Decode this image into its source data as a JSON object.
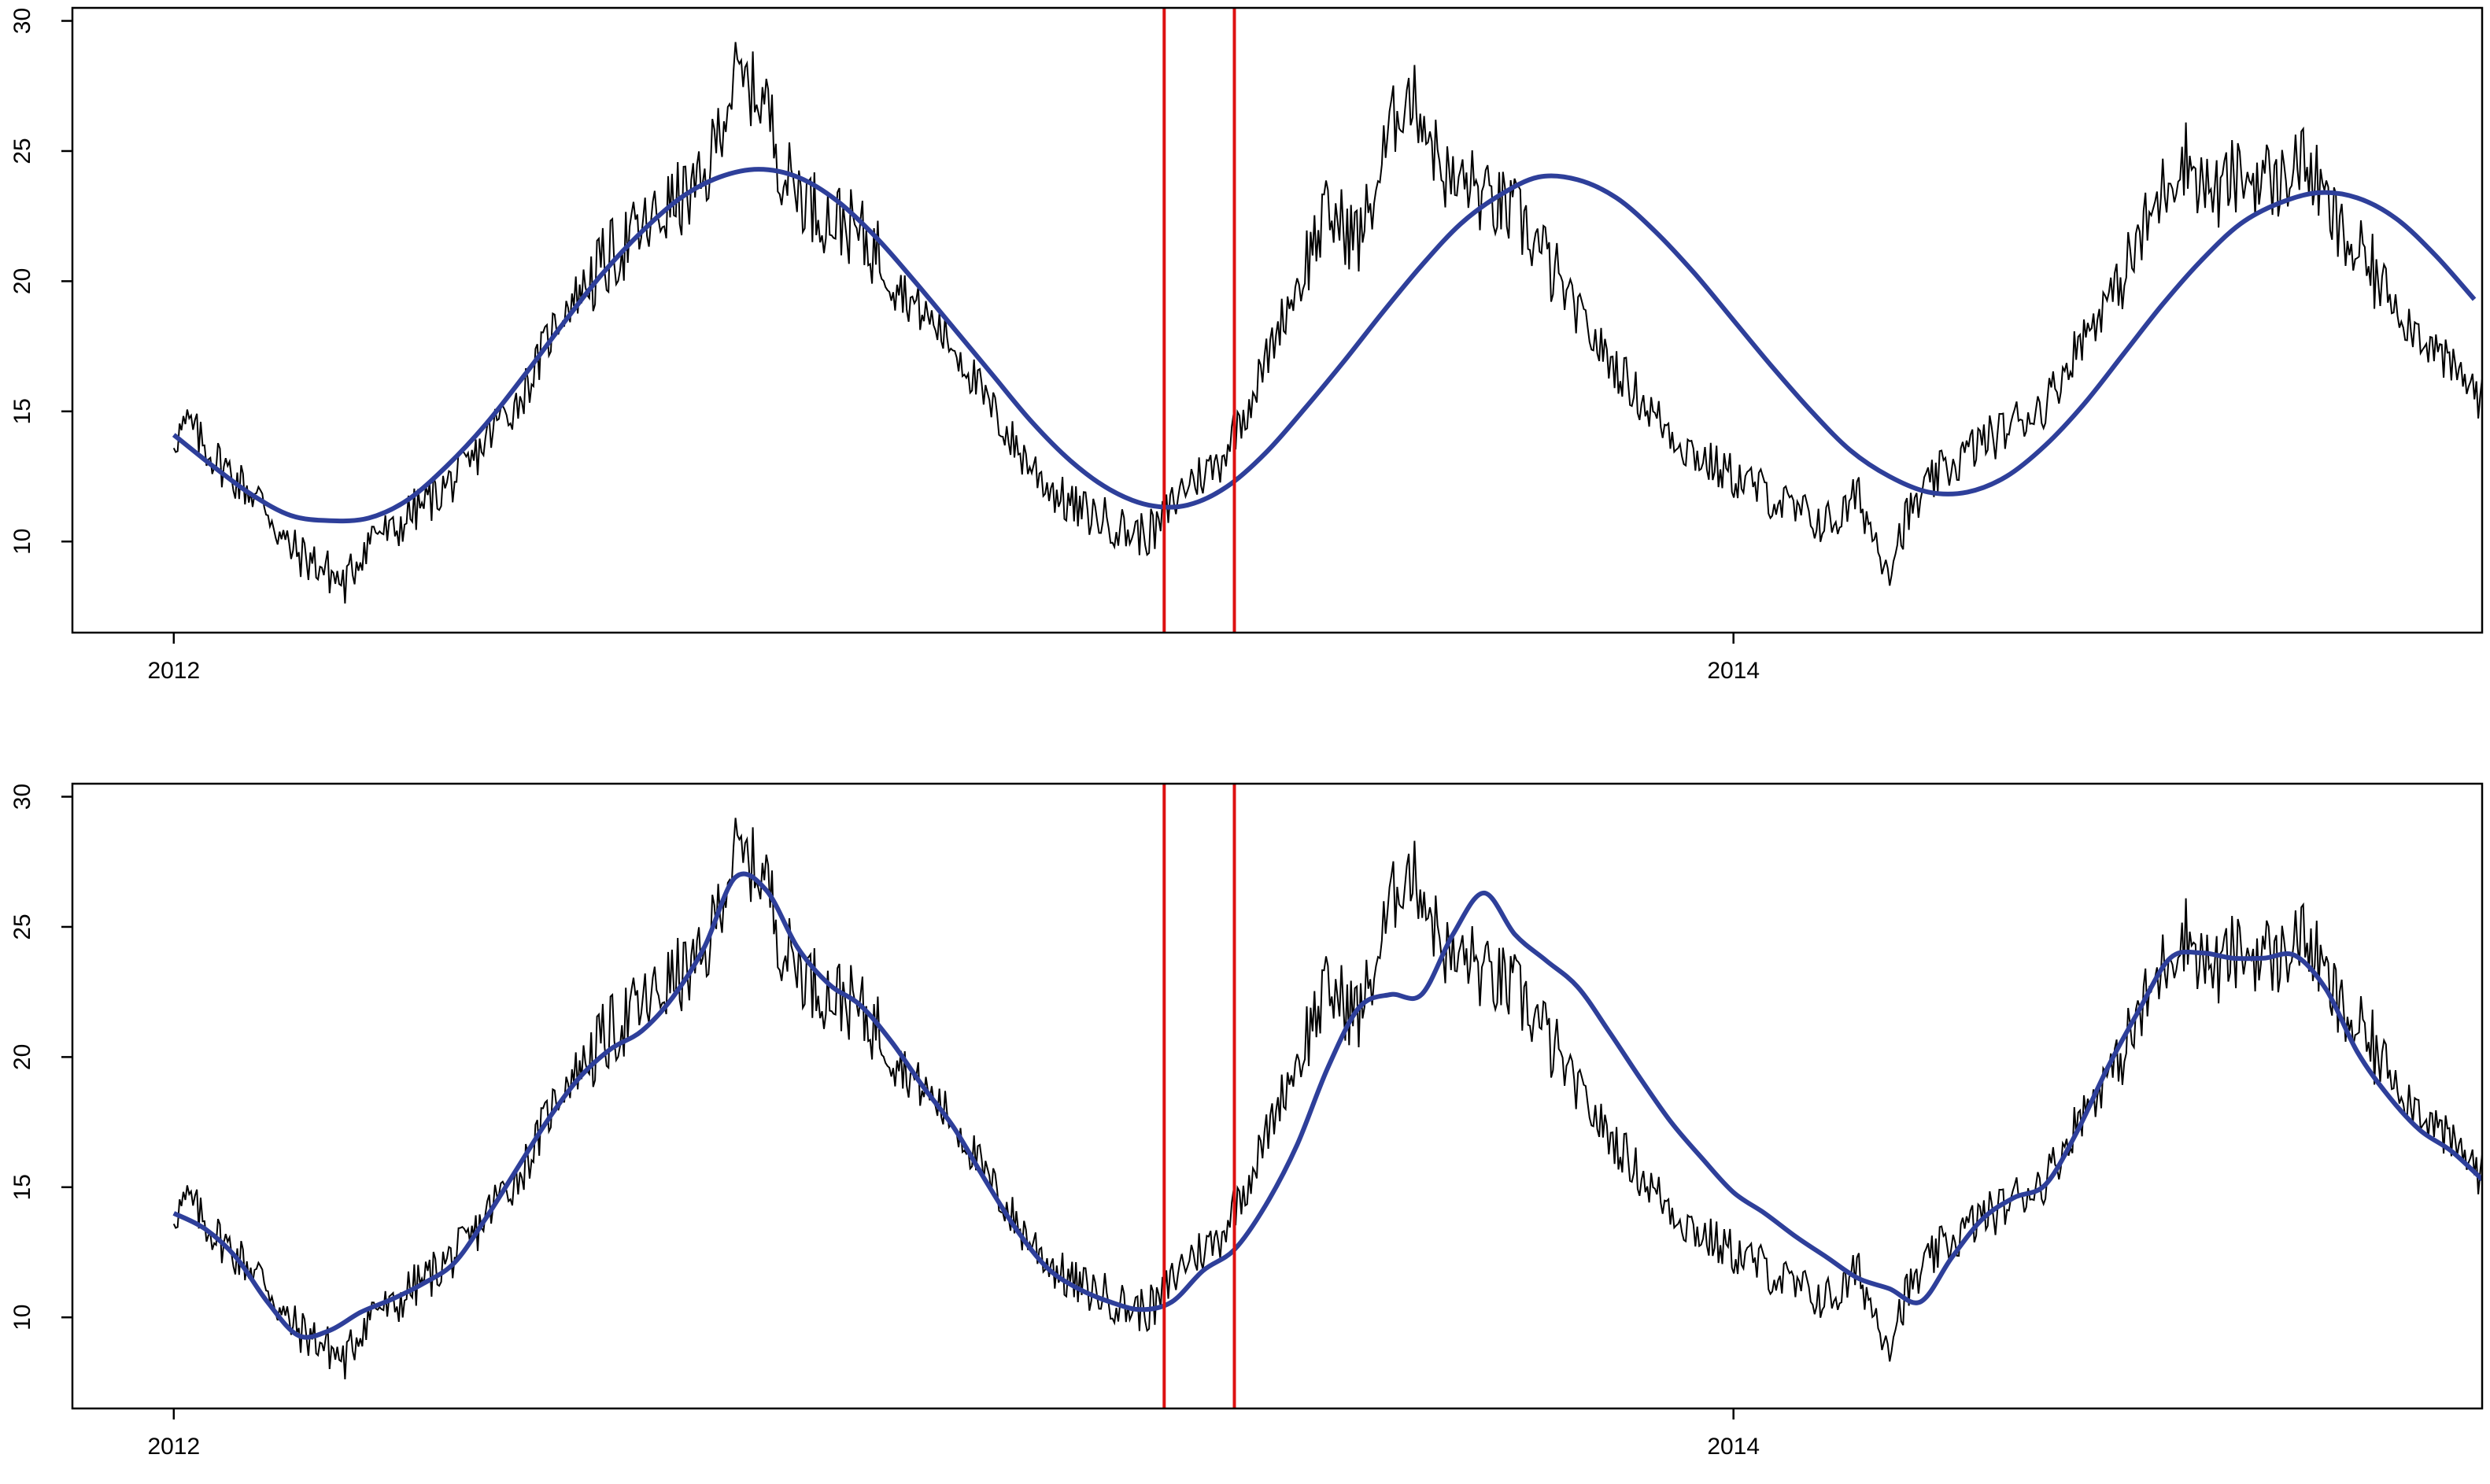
{
  "colors": {
    "series": "#000000",
    "fit": "#2E3F9A",
    "marker": "#DD1111",
    "frame": "#000000"
  },
  "chart_data": [
    {
      "type": "line",
      "title": "",
      "xlabel": "",
      "ylabel": "",
      "x_domain": [
        "2012-01-01",
        "2014-12-31"
      ],
      "xlim_years": [
        2011.87,
        2014.96
      ],
      "ylim": [
        6.5,
        30.5
      ],
      "y_ticks": [
        10,
        15,
        20,
        25,
        30
      ],
      "x_ticks": [
        {
          "value": 2012,
          "label": "2012"
        },
        {
          "value": 2014,
          "label": "2014"
        }
      ],
      "markers": {
        "type": "vline",
        "x_years": [
          2013.27,
          2013.36
        ]
      },
      "grid": false,
      "legend": "none",
      "smooth": {
        "name": "",
        "x_years": [
          2012.0,
          2012.05,
          2012.1,
          2012.15,
          2012.2,
          2012.25,
          2012.3,
          2012.35,
          2012.4,
          2012.45,
          2012.5,
          2012.55,
          2012.6,
          2012.65,
          2012.7,
          2012.75,
          2012.8,
          2012.85,
          2012.9,
          2012.95,
          2013.0,
          2013.05,
          2013.1,
          2013.15,
          2013.2,
          2013.25,
          2013.3,
          2013.35,
          2013.4,
          2013.45,
          2013.5,
          2013.55,
          2013.6,
          2013.65,
          2013.7,
          2013.75,
          2013.8,
          2013.85,
          2013.9,
          2013.95,
          2014.0,
          2014.05,
          2014.1,
          2014.15,
          2014.2,
          2014.25,
          2014.3,
          2014.35,
          2014.4,
          2014.45,
          2014.5,
          2014.55,
          2014.6,
          2014.65,
          2014.7,
          2014.75,
          2014.8,
          2014.85,
          2014.9,
          2014.95
        ],
        "y": [
          14.1,
          12.9,
          11.8,
          11.0,
          10.8,
          10.9,
          11.6,
          12.9,
          14.5,
          16.4,
          18.4,
          20.3,
          21.9,
          23.2,
          24.0,
          24.3,
          24.0,
          23.1,
          21.7,
          20.0,
          18.2,
          16.4,
          14.6,
          13.1,
          12.0,
          11.4,
          11.4,
          12.1,
          13.4,
          15.1,
          16.9,
          18.8,
          20.6,
          22.2,
          23.3,
          24.0,
          23.9,
          23.2,
          21.9,
          20.3,
          18.5,
          16.7,
          15.0,
          13.5,
          12.5,
          11.9,
          11.9,
          12.5,
          13.7,
          15.3,
          17.2,
          19.1,
          20.8,
          22.2,
          23.0,
          23.4,
          23.2,
          22.4,
          21.0,
          19.3
        ]
      },
      "series_black": {
        "name": "",
        "x_years": [
          2012.0,
          2012.02,
          2012.04,
          2012.06,
          2012.08,
          2012.1,
          2012.12,
          2012.14,
          2012.16,
          2012.18,
          2012.2,
          2012.22,
          2012.24,
          2012.26,
          2012.28,
          2012.3,
          2012.32,
          2012.34,
          2012.36,
          2012.38,
          2012.4,
          2012.42,
          2012.44,
          2012.46,
          2012.48,
          2012.5,
          2012.52,
          2012.54,
          2012.56,
          2012.58,
          2012.6,
          2012.62,
          2012.64,
          2012.66,
          2012.68,
          2012.7,
          2012.72,
          2012.74,
          2012.76,
          2012.78,
          2012.8,
          2012.82,
          2012.84,
          2012.86,
          2012.88,
          2012.9,
          2012.92,
          2012.94,
          2012.96,
          2012.98,
          2013.0,
          2013.02,
          2013.04,
          2013.06,
          2013.08,
          2013.1,
          2013.12,
          2013.14,
          2013.16,
          2013.18,
          2013.2,
          2013.22,
          2013.24,
          2013.26,
          2013.28,
          2013.3,
          2013.32,
          2013.34,
          2013.36,
          2013.38,
          2013.4,
          2013.42,
          2013.44,
          2013.46,
          2013.48,
          2013.5,
          2013.52,
          2013.54,
          2013.56,
          2013.58,
          2013.6,
          2013.62,
          2013.64,
          2013.66,
          2013.68,
          2013.7,
          2013.72,
          2013.74,
          2013.76,
          2013.78,
          2013.8,
          2013.82,
          2013.84,
          2013.86,
          2013.88,
          2013.9,
          2013.92,
          2013.94,
          2013.96,
          2013.98,
          2014.0,
          2014.02,
          2014.04,
          2014.06,
          2014.08,
          2014.1,
          2014.12,
          2014.14,
          2014.16,
          2014.18,
          2014.2,
          2014.22,
          2014.24,
          2014.26,
          2014.28,
          2014.3,
          2014.32,
          2014.34,
          2014.36,
          2014.38,
          2014.4,
          2014.42,
          2014.44,
          2014.46,
          2014.48,
          2014.5,
          2014.52,
          2014.54,
          2014.56,
          2014.58,
          2014.6,
          2014.62,
          2014.64,
          2014.66,
          2014.68,
          2014.7,
          2014.72,
          2014.74,
          2014.76,
          2014.78,
          2014.8,
          2014.82,
          2014.84,
          2014.86,
          2014.88,
          2014.9,
          2014.92,
          2014.94,
          2014.96
        ],
        "y": [
          14.0,
          14.5,
          13.6,
          13.0,
          12.4,
          11.9,
          11.3,
          10.0,
          9.5,
          9.2,
          8.8,
          8.3,
          9.6,
          10.5,
          10.2,
          11.0,
          11.4,
          11.9,
          12.4,
          12.9,
          13.9,
          14.8,
          15.3,
          16.4,
          17.8,
          18.9,
          19.6,
          20.2,
          20.9,
          21.5,
          21.9,
          22.4,
          23.0,
          23.3,
          23.6,
          26.0,
          27.8,
          27.4,
          26.9,
          24.2,
          23.6,
          22.9,
          22.4,
          22.3,
          21.7,
          21.2,
          20.5,
          19.4,
          18.8,
          18.2,
          17.5,
          16.6,
          15.4,
          14.6,
          13.6,
          12.9,
          12.2,
          11.6,
          11.2,
          11.0,
          10.8,
          10.4,
          10.3,
          10.4,
          11.4,
          12.3,
          12.6,
          13.0,
          14.3,
          15.4,
          16.9,
          18.5,
          19.8,
          21.4,
          22.6,
          22.1,
          21.6,
          23.4,
          25.8,
          27.3,
          26.5,
          24.8,
          23.6,
          23.9,
          23.1,
          22.9,
          22.5,
          21.8,
          20.8,
          19.7,
          18.8,
          17.8,
          17.0,
          16.3,
          15.5,
          14.8,
          14.2,
          13.6,
          13.2,
          12.8,
          12.5,
          12.2,
          11.9,
          11.5,
          11.1,
          10.9,
          10.7,
          11.0,
          11.8,
          10.2,
          9.1,
          10.8,
          11.6,
          12.5,
          12.9,
          13.4,
          13.9,
          14.1,
          14.6,
          14.9,
          15.3,
          16.3,
          17.5,
          18.4,
          19.3,
          20.2,
          21.5,
          22.8,
          24.1,
          24.8,
          23.8,
          23.3,
          24.0,
          23.9,
          24.1,
          23.6,
          24.7,
          24.3,
          22.9,
          21.7,
          21.0,
          20.3,
          19.7,
          18.6,
          18.0,
          17.4,
          16.6,
          16.2,
          15.4
        ]
      }
    },
    {
      "type": "line",
      "title": "",
      "xlabel": "",
      "ylabel": "",
      "x_domain": [
        "2012-01-01",
        "2014-12-31"
      ],
      "xlim_years": [
        2011.87,
        2014.96
      ],
      "ylim": [
        6.5,
        30.5
      ],
      "y_ticks": [
        10,
        15,
        20,
        25,
        30
      ],
      "x_ticks": [
        {
          "value": 2012,
          "label": "2012"
        },
        {
          "value": 2014,
          "label": "2014"
        }
      ],
      "markers": {
        "type": "vline",
        "x_years": [
          2013.27,
          2013.36
        ]
      },
      "grid": false,
      "legend": "none",
      "smooth": {
        "name": "",
        "x_years": [
          2012.0,
          2012.04,
          2012.08,
          2012.12,
          2012.16,
          2012.2,
          2012.24,
          2012.28,
          2012.32,
          2012.36,
          2012.4,
          2012.44,
          2012.48,
          2012.52,
          2012.56,
          2012.6,
          2012.64,
          2012.68,
          2012.72,
          2012.76,
          2012.8,
          2012.84,
          2012.88,
          2012.92,
          2012.96,
          2013.0,
          2013.04,
          2013.08,
          2013.12,
          2013.16,
          2013.2,
          2013.24,
          2013.28,
          2013.32,
          2013.36,
          2013.4,
          2013.44,
          2013.48,
          2013.52,
          2013.56,
          2013.6,
          2013.64,
          2013.68,
          2013.72,
          2013.76,
          2013.8,
          2013.84,
          2013.88,
          2013.92,
          2013.96,
          2014.0,
          2014.04,
          2014.08,
          2014.12,
          2014.16,
          2014.2,
          2014.24,
          2014.28,
          2014.32,
          2014.36,
          2014.4,
          2014.44,
          2014.48,
          2014.52,
          2014.56,
          2014.6,
          2014.64,
          2014.68,
          2014.72,
          2014.76,
          2014.8,
          2014.84,
          2014.88,
          2014.92,
          2014.96
        ],
        "y": [
          14.0,
          13.4,
          12.3,
          10.6,
          9.3,
          9.5,
          10.2,
          10.7,
          11.3,
          12.1,
          13.8,
          15.7,
          17.6,
          19.2,
          20.3,
          21.0,
          22.3,
          24.2,
          26.9,
          26.4,
          24.2,
          22.8,
          22.0,
          20.6,
          18.9,
          17.3,
          15.3,
          13.4,
          11.9,
          11.1,
          10.6,
          10.3,
          10.6,
          11.8,
          12.6,
          14.3,
          16.6,
          19.6,
          21.9,
          22.4,
          22.4,
          24.7,
          26.3,
          24.7,
          23.7,
          22.7,
          21.0,
          19.2,
          17.5,
          16.1,
          14.8,
          14.0,
          13.1,
          12.3,
          11.5,
          11.1,
          10.6,
          12.3,
          13.8,
          14.6,
          15.1,
          17.1,
          19.6,
          21.8,
          23.8,
          24.0,
          23.8,
          23.8,
          23.9,
          22.6,
          20.2,
          18.5,
          17.2,
          16.4,
          15.3
        ]
      },
      "series_black": {
        "name": "",
        "x_years": [
          2012.0,
          2012.02,
          2012.04,
          2012.06,
          2012.08,
          2012.1,
          2012.12,
          2012.14,
          2012.16,
          2012.18,
          2012.2,
          2012.22,
          2012.24,
          2012.26,
          2012.28,
          2012.3,
          2012.32,
          2012.34,
          2012.36,
          2012.38,
          2012.4,
          2012.42,
          2012.44,
          2012.46,
          2012.48,
          2012.5,
          2012.52,
          2012.54,
          2012.56,
          2012.58,
          2012.6,
          2012.62,
          2012.64,
          2012.66,
          2012.68,
          2012.7,
          2012.72,
          2012.74,
          2012.76,
          2012.78,
          2012.8,
          2012.82,
          2012.84,
          2012.86,
          2012.88,
          2012.9,
          2012.92,
          2012.94,
          2012.96,
          2012.98,
          2013.0,
          2013.02,
          2013.04,
          2013.06,
          2013.08,
          2013.1,
          2013.12,
          2013.14,
          2013.16,
          2013.18,
          2013.2,
          2013.22,
          2013.24,
          2013.26,
          2013.28,
          2013.3,
          2013.32,
          2013.34,
          2013.36,
          2013.38,
          2013.4,
          2013.42,
          2013.44,
          2013.46,
          2013.48,
          2013.5,
          2013.52,
          2013.54,
          2013.56,
          2013.58,
          2013.6,
          2013.62,
          2013.64,
          2013.66,
          2013.68,
          2013.7,
          2013.72,
          2013.74,
          2013.76,
          2013.78,
          2013.8,
          2013.82,
          2013.84,
          2013.86,
          2013.88,
          2013.9,
          2013.92,
          2013.94,
          2013.96,
          2013.98,
          2014.0,
          2014.02,
          2014.04,
          2014.06,
          2014.08,
          2014.1,
          2014.12,
          2014.14,
          2014.16,
          2014.18,
          2014.2,
          2014.22,
          2014.24,
          2014.26,
          2014.28,
          2014.3,
          2014.32,
          2014.34,
          2014.36,
          2014.38,
          2014.4,
          2014.42,
          2014.44,
          2014.46,
          2014.48,
          2014.5,
          2014.52,
          2014.54,
          2014.56,
          2014.58,
          2014.6,
          2014.62,
          2014.64,
          2014.66,
          2014.68,
          2014.7,
          2014.72,
          2014.74,
          2014.76,
          2014.78,
          2014.8,
          2014.82,
          2014.84,
          2014.86,
          2014.88,
          2014.9,
          2014.92,
          2014.94,
          2014.96
        ],
        "y": [
          14.0,
          14.5,
          13.6,
          13.0,
          12.4,
          11.9,
          11.3,
          10.0,
          9.5,
          9.2,
          8.8,
          8.3,
          9.6,
          10.5,
          10.2,
          11.0,
          11.4,
          11.9,
          12.4,
          12.9,
          13.9,
          14.8,
          15.3,
          16.4,
          17.8,
          18.9,
          19.6,
          20.2,
          20.9,
          21.5,
          21.9,
          22.4,
          23.0,
          23.3,
          23.6,
          26.0,
          27.8,
          27.4,
          26.9,
          24.2,
          23.6,
          22.9,
          22.4,
          22.3,
          21.7,
          21.2,
          20.5,
          19.4,
          18.8,
          18.2,
          17.5,
          16.6,
          15.4,
          14.6,
          13.6,
          12.9,
          12.2,
          11.6,
          11.2,
          11.0,
          10.8,
          10.4,
          10.3,
          10.4,
          11.4,
          12.3,
          12.6,
          13.0,
          14.3,
          15.4,
          16.9,
          18.5,
          19.8,
          21.4,
          22.6,
          22.1,
          21.6,
          23.4,
          25.8,
          27.3,
          26.5,
          24.8,
          23.6,
          23.9,
          23.1,
          22.9,
          22.5,
          21.8,
          20.8,
          19.7,
          18.8,
          17.8,
          17.0,
          16.3,
          15.5,
          14.8,
          14.2,
          13.6,
          13.2,
          12.8,
          12.5,
          12.2,
          11.9,
          11.5,
          11.1,
          10.9,
          10.7,
          11.0,
          11.8,
          10.2,
          9.1,
          10.8,
          11.6,
          12.5,
          12.9,
          13.4,
          13.9,
          14.1,
          14.6,
          14.9,
          15.3,
          16.3,
          17.5,
          18.4,
          19.3,
          20.2,
          21.5,
          22.8,
          24.1,
          24.8,
          23.8,
          23.3,
          24.0,
          23.9,
          24.1,
          23.6,
          24.7,
          24.3,
          22.9,
          21.7,
          21.0,
          20.3,
          19.7,
          18.6,
          18.0,
          17.4,
          16.6,
          16.2,
          15.4
        ]
      }
    }
  ]
}
